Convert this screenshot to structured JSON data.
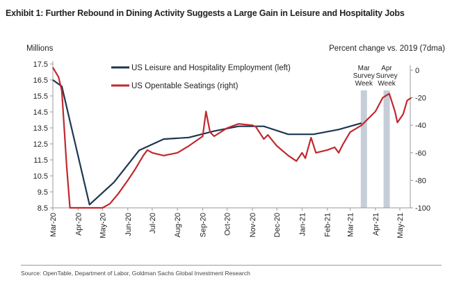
{
  "chart_data": {
    "type": "line",
    "title": "Exhibit 1: Further Rebound in Dining Activity Suggests a Large Gain in Leisure and Hospitality Jobs",
    "ylabel_left": "Millions",
    "ylabel_right": "Percent change vs. 2019 (7dma)",
    "ylim_left": [
      8.5,
      17.5
    ],
    "yticks_left": [
      "17.5",
      "16.5",
      "15.5",
      "14.5",
      "13.5",
      "12.5",
      "11.5",
      "10.5",
      "9.5",
      "8.5"
    ],
    "ylim_right": [
      -100,
      5
    ],
    "yticks_right": [
      "0",
      "-20",
      "-40",
      "-60",
      "-80",
      "-100"
    ],
    "xlim": [
      "2020-03-01",
      "2021-05-01"
    ],
    "xticks": [
      {
        "date": "2020-03-01",
        "label": "Mar-20"
      },
      {
        "date": "2020-04-01",
        "label": "Apr-20"
      },
      {
        "date": "2020-05-01",
        "label": "May-20"
      },
      {
        "date": "2020-06-01",
        "label": "Jun-20"
      },
      {
        "date": "2020-07-01",
        "label": "Jul-20"
      },
      {
        "date": "2020-08-01",
        "label": "Aug-20"
      },
      {
        "date": "2020-09-01",
        "label": "Sep-20"
      },
      {
        "date": "2020-10-01",
        "label": "Oct-20"
      },
      {
        "date": "2020-11-01",
        "label": "Nov-20"
      },
      {
        "date": "2020-12-01",
        "label": "Dec-20"
      },
      {
        "date": "2021-01-01",
        "label": "Jan-21"
      },
      {
        "date": "2021-02-01",
        "label": "Feb-21"
      },
      {
        "date": "2021-03-01",
        "label": "Mar-21"
      },
      {
        "date": "2021-04-01",
        "label": "Apr-21"
      },
      {
        "date": "2021-05-01",
        "label": "May-21"
      }
    ],
    "grid": false,
    "legend_placement": "top-center",
    "series": [
      {
        "name": "US Leisure and Hospitality Employment (left)",
        "axis": "left",
        "color": "#1f3550",
        "points": [
          [
            "2020-03-01",
            16.5
          ],
          [
            "2020-03-12",
            16.1
          ],
          [
            "2020-04-15",
            8.7
          ],
          [
            "2020-05-15",
            10.1
          ],
          [
            "2020-06-15",
            12.1
          ],
          [
            "2020-07-15",
            12.8
          ],
          [
            "2020-08-15",
            12.9
          ],
          [
            "2020-09-15",
            13.3
          ],
          [
            "2020-10-15",
            13.6
          ],
          [
            "2020-11-15",
            13.6
          ],
          [
            "2020-12-15",
            13.1
          ],
          [
            "2021-01-15",
            13.1
          ],
          [
            "2021-02-15",
            13.4
          ],
          [
            "2021-03-15",
            13.8
          ]
        ]
      },
      {
        "name": "US Opentable Seatings (right)",
        "axis": "right",
        "color": "#c0282d",
        "points": [
          [
            "2020-03-01",
            2
          ],
          [
            "2020-03-08",
            -5
          ],
          [
            "2020-03-12",
            -15
          ],
          [
            "2020-03-18",
            -70
          ],
          [
            "2020-03-22",
            -100
          ],
          [
            "2020-04-15",
            -100
          ],
          [
            "2020-05-01",
            -100
          ],
          [
            "2020-05-10",
            -97
          ],
          [
            "2020-05-20",
            -90
          ],
          [
            "2020-06-01",
            -80
          ],
          [
            "2020-06-10",
            -72
          ],
          [
            "2020-06-20",
            -62
          ],
          [
            "2020-06-25",
            -58
          ],
          [
            "2020-07-01",
            -60
          ],
          [
            "2020-07-15",
            -62
          ],
          [
            "2020-08-01",
            -60
          ],
          [
            "2020-08-15",
            -55
          ],
          [
            "2020-09-01",
            -48
          ],
          [
            "2020-09-05",
            -30
          ],
          [
            "2020-09-10",
            -45
          ],
          [
            "2020-09-15",
            -48
          ],
          [
            "2020-10-01",
            -42
          ],
          [
            "2020-10-15",
            -39
          ],
          [
            "2020-11-01",
            -40
          ],
          [
            "2020-11-05",
            -41
          ],
          [
            "2020-11-15",
            -50
          ],
          [
            "2020-11-20",
            -47
          ],
          [
            "2020-12-01",
            -55
          ],
          [
            "2020-12-15",
            -62
          ],
          [
            "2020-12-25",
            -66
          ],
          [
            "2021-01-01",
            -60
          ],
          [
            "2021-01-05",
            -64
          ],
          [
            "2021-01-12",
            -49
          ],
          [
            "2021-01-18",
            -60
          ],
          [
            "2021-02-01",
            -58
          ],
          [
            "2021-02-10",
            -56
          ],
          [
            "2021-02-15",
            -60
          ],
          [
            "2021-02-20",
            -54
          ],
          [
            "2021-03-01",
            -45
          ],
          [
            "2021-03-15",
            -40
          ],
          [
            "2021-04-01",
            -30
          ],
          [
            "2021-04-10",
            -20
          ],
          [
            "2021-04-18",
            -17
          ],
          [
            "2021-04-25",
            -30
          ],
          [
            "2021-04-28",
            -38
          ],
          [
            "2021-05-05",
            -32
          ],
          [
            "2021-05-10",
            -22
          ],
          [
            "2021-05-15",
            -20
          ]
        ]
      }
    ],
    "annotations": [
      {
        "label": [
          "Mar",
          "Survey",
          "Week"
        ],
        "start": "2021-03-14",
        "end": "2021-03-20",
        "color": "#c5ced8"
      },
      {
        "label": [
          "Apr",
          "Survey",
          "Week"
        ],
        "start": "2021-04-11",
        "end": "2021-04-17",
        "color": "#c5ced8"
      }
    ]
  },
  "footer": {
    "source": "Source: OpenTable, Department of Labor, Goldman Sachs Global Investment Research"
  }
}
